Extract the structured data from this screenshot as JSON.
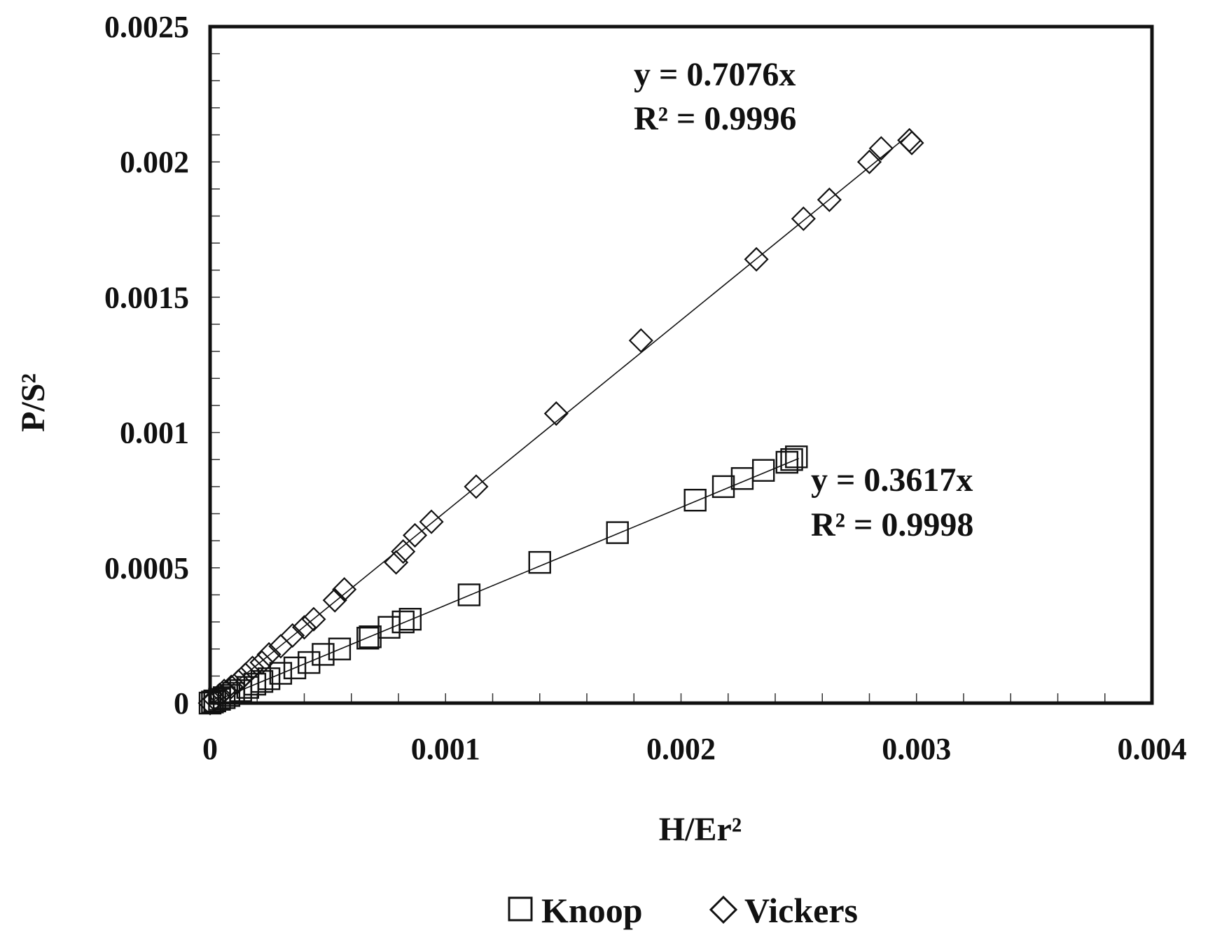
{
  "chart_data": {
    "type": "scatter",
    "xlabel": "H/Er²",
    "ylabel": "P/S²",
    "xlim": [
      0,
      0.004
    ],
    "ylim": [
      0,
      0.0025
    ],
    "x_ticks": [
      0,
      0.001,
      0.002,
      0.003,
      0.004
    ],
    "x_tick_labels": [
      "0",
      "0.001",
      "0.002",
      "0.003",
      "0.004"
    ],
    "y_ticks": [
      0,
      0.0005,
      0.001,
      0.0015,
      0.002,
      0.0025
    ],
    "y_tick_labels": [
      "0",
      "0.0005",
      "0.001",
      "0.0015",
      "0.002",
      "0.0025"
    ],
    "grid": false,
    "legend_position": "bottom-center",
    "series": [
      {
        "name": "Knoop",
        "marker": "square",
        "color": "#111111",
        "points": [
          {
            "x": 0.0,
            "y": 0.0
          },
          {
            "x": 1e-05,
            "y": 4e-06
          },
          {
            "x": 2e-05,
            "y": 8e-06
          },
          {
            "x": 4e-05,
            "y": 1.4e-05
          },
          {
            "x": 6e-05,
            "y": 2e-05
          },
          {
            "x": 8e-05,
            "y": 2.8e-05
          },
          {
            "x": 0.0001,
            "y": 3.6e-05
          },
          {
            "x": 0.00013,
            "y": 4.6e-05
          },
          {
            "x": 0.00016,
            "y": 5.8e-05
          },
          {
            "x": 0.00019,
            "y": 7e-05
          },
          {
            "x": 0.00022,
            "y": 8e-05
          },
          {
            "x": 0.00025,
            "y": 9e-05
          },
          {
            "x": 0.0003,
            "y": 0.00011
          },
          {
            "x": 0.00036,
            "y": 0.00013
          },
          {
            "x": 0.00042,
            "y": 0.00015
          },
          {
            "x": 0.00048,
            "y": 0.00018
          },
          {
            "x": 0.00055,
            "y": 0.0002
          },
          {
            "x": 0.00067,
            "y": 0.00024
          },
          {
            "x": 0.00068,
            "y": 0.000245
          },
          {
            "x": 0.00076,
            "y": 0.00028
          },
          {
            "x": 0.00082,
            "y": 0.0003
          },
          {
            "x": 0.00085,
            "y": 0.00031
          },
          {
            "x": 0.0011,
            "y": 0.0004
          },
          {
            "x": 0.0014,
            "y": 0.00052
          },
          {
            "x": 0.00173,
            "y": 0.00063
          },
          {
            "x": 0.00206,
            "y": 0.00075
          },
          {
            "x": 0.00218,
            "y": 0.0008
          },
          {
            "x": 0.00226,
            "y": 0.00083
          },
          {
            "x": 0.00235,
            "y": 0.00086
          },
          {
            "x": 0.00245,
            "y": 0.00089
          },
          {
            "x": 0.00247,
            "y": 0.0009
          },
          {
            "x": 0.00249,
            "y": 0.00091
          }
        ],
        "trendline": {
          "slope": 0.3617,
          "x_max": 0.0025,
          "equation": "y = 0.3617x",
          "r2": "R² = 0.9998"
        }
      },
      {
        "name": "Vickers",
        "marker": "diamond",
        "color": "#111111",
        "points": [
          {
            "x": 0.0,
            "y": 0.0
          },
          {
            "x": 2e-05,
            "y": 1.4e-05
          },
          {
            "x": 4e-05,
            "y": 3e-05
          },
          {
            "x": 6e-05,
            "y": 4.5e-05
          },
          {
            "x": 9e-05,
            "y": 6e-05
          },
          {
            "x": 0.00012,
            "y": 8e-05
          },
          {
            "x": 0.00015,
            "y": 0.000105
          },
          {
            "x": 0.00018,
            "y": 0.00013
          },
          {
            "x": 0.00022,
            "y": 0.00015
          },
          {
            "x": 0.00025,
            "y": 0.00018
          },
          {
            "x": 0.0003,
            "y": 0.00021
          },
          {
            "x": 0.00035,
            "y": 0.00025
          },
          {
            "x": 0.0004,
            "y": 0.00028
          },
          {
            "x": 0.00044,
            "y": 0.00031
          },
          {
            "x": 0.00053,
            "y": 0.00038
          },
          {
            "x": 0.00057,
            "y": 0.00042
          },
          {
            "x": 0.00079,
            "y": 0.00052
          },
          {
            "x": 0.00082,
            "y": 0.00056
          },
          {
            "x": 0.00087,
            "y": 0.00062
          },
          {
            "x": 0.00094,
            "y": 0.00067
          },
          {
            "x": 0.00113,
            "y": 0.0008
          },
          {
            "x": 0.00147,
            "y": 0.00107
          },
          {
            "x": 0.00183,
            "y": 0.00134
          },
          {
            "x": 0.00232,
            "y": 0.00164
          },
          {
            "x": 0.00252,
            "y": 0.00179
          },
          {
            "x": 0.00263,
            "y": 0.00186
          },
          {
            "x": 0.0028,
            "y": 0.002
          },
          {
            "x": 0.00285,
            "y": 0.00205
          },
          {
            "x": 0.00297,
            "y": 0.00208
          },
          {
            "x": 0.00298,
            "y": 0.00207
          }
        ],
        "trendline": {
          "slope": 0.7076,
          "x_max": 0.00297,
          "equation": "y = 0.7076x",
          "r2": "R² = 0.9996"
        }
      }
    ]
  }
}
